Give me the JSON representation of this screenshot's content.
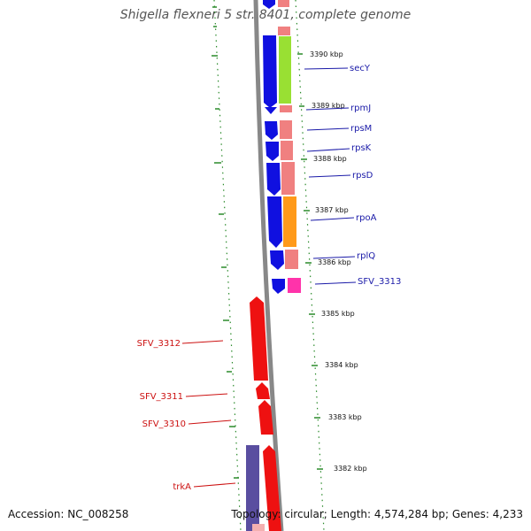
{
  "header": {
    "title": "Shigella flexneri 5 str. 8401, complete genome"
  },
  "footer": {
    "accession": "Accession: NC_008258",
    "topology": "Topology: circular; Length: 4,574,284 bp; Genes: 4,233"
  },
  "colors": {
    "forward_gene": "#1010e0",
    "reverse_gene": "#ee1111",
    "purple_gene": "#5a4ea0",
    "label_forward": "#1a1aa8",
    "label_reverse": "#cc1111",
    "tick": "#2a8a2a",
    "backbone": "#888888"
  },
  "kbp_ticks": [
    "3390 kbp",
    "3389 kbp",
    "3388 kbp",
    "3387 kbp",
    "3386 kbp",
    "3385 kbp",
    "3384 kbp",
    "3383 kbp",
    "3382 kbp"
  ],
  "forward_genes": [
    "secY",
    "rpmJ",
    "rpsM",
    "rpsK",
    "rpsD",
    "rpoA",
    "rplQ",
    "SFV_3313"
  ],
  "reverse_genes": [
    "SFV_3312",
    "SFV_3311",
    "SFV_3310",
    "trkA"
  ]
}
